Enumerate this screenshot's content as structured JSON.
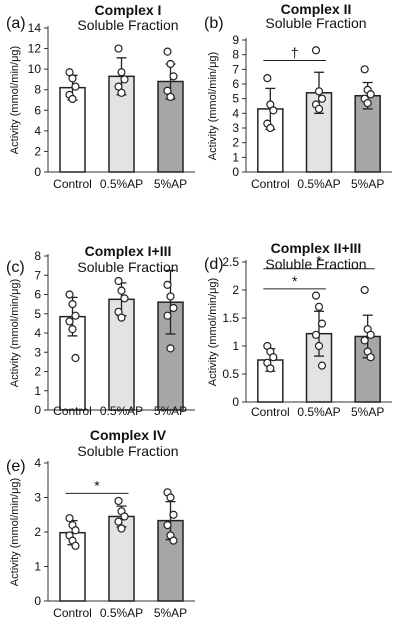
{
  "figure": {
    "categories": [
      "Control",
      "0.5%AP",
      "5%AP"
    ],
    "bar_colors": [
      "#ffffff",
      "#e3e3e3",
      "#a6a6a6"
    ],
    "ylabel": "Activity (mmol/min/μg)"
  },
  "chart_data": [
    {
      "type": "bar",
      "panel_label": "(a)",
      "title": "Complex I",
      "subtitle": "Soluble Fraction",
      "categories": [
        "Control",
        "0.5%AP",
        "5%AP"
      ],
      "values": [
        8.2,
        9.3,
        8.8
      ],
      "error": [
        1.2,
        1.8,
        1.7
      ],
      "points": [
        [
          9.7,
          9.1,
          8.3,
          7.5,
          7.1
        ],
        [
          12.0,
          9.7,
          9.0,
          8.3,
          7.7
        ],
        [
          11.7,
          10.5,
          9.3,
          7.9,
          7.3
        ]
      ],
      "ylabel": "Activity (mmol/min/μg)",
      "ylim": [
        0,
        14
      ],
      "yticks": [
        0,
        2,
        4,
        6,
        8,
        10,
        12,
        14
      ],
      "significance": []
    },
    {
      "type": "bar",
      "panel_label": "(b)",
      "title": "Complex II",
      "subtitle": "Soluble Fraction",
      "categories": [
        "Control",
        "0.5%AP",
        "5%AP"
      ],
      "values": [
        4.3,
        5.4,
        5.2
      ],
      "error": [
        1.4,
        1.4,
        0.9
      ],
      "points": [
        [
          6.4,
          4.6,
          4.2,
          3.3,
          3.0
        ],
        [
          8.3,
          5.5,
          5.0,
          4.6,
          4.3
        ],
        [
          7.0,
          5.6,
          5.3,
          5.0,
          4.7
        ]
      ],
      "ylabel": "Activity (mmol/min/μg)",
      "ylim": [
        0,
        9
      ],
      "yticks": [
        0,
        1,
        2,
        3,
        4,
        5,
        6,
        7,
        8,
        9
      ],
      "significance": [
        {
          "from": "Control",
          "to": "0.5%AP",
          "symbol": "†",
          "level": 7.6
        }
      ]
    },
    {
      "type": "bar",
      "panel_label": "(c)",
      "title": "Complex I+III",
      "subtitle": "Soluble Fraction",
      "categories": [
        "Control",
        "0.5%AP",
        "5%AP"
      ],
      "values": [
        4.85,
        5.75,
        5.6
      ],
      "error": [
        1.0,
        0.85,
        1.65
      ],
      "points": [
        [
          6.0,
          5.5,
          4.9,
          4.6,
          4.2,
          2.7
        ],
        [
          6.7,
          6.2,
          5.8,
          5.1,
          4.8
        ],
        [
          6.5,
          5.9,
          5.3,
          4.9,
          3.2
        ]
      ],
      "ylabel": "Activity (mmol/min/μg)",
      "ylim": [
        0,
        8
      ],
      "yticks": [
        0,
        1,
        2,
        3,
        4,
        5,
        6,
        7,
        8
      ],
      "significance": []
    },
    {
      "type": "bar",
      "panel_label": "(d)",
      "title": "Complex II+III",
      "subtitle": "Soluble Fraction",
      "categories": [
        "Control",
        "0.5%AP",
        "5%AP"
      ],
      "values": [
        0.75,
        1.22,
        1.17
      ],
      "error": [
        0.2,
        0.4,
        0.38
      ],
      "points": [
        [
          1.0,
          0.9,
          0.8,
          0.7,
          0.6
        ],
        [
          1.9,
          1.7,
          1.4,
          1.2,
          1.0,
          0.65
        ],
        [
          2.0,
          1.3,
          1.2,
          1.1,
          0.9,
          0.8
        ]
      ],
      "ylabel": "Activity (mmol/min/μg)",
      "ylim": [
        0,
        2.5
      ],
      "yticks": [
        0,
        0.5,
        1,
        1.5,
        2,
        2.5
      ],
      "significance": [
        {
          "from": "Control",
          "to": "5%AP",
          "symbol": "*",
          "level": 2.38
        },
        {
          "from": "Control",
          "to": "0.5%AP",
          "symbol": "*",
          "level": 2.02
        }
      ]
    },
    {
      "type": "bar",
      "panel_label": "(e)",
      "title": "Complex IV",
      "subtitle": "Soluble Fraction",
      "categories": [
        "Control",
        "0.5%AP",
        "5%AP"
      ],
      "values": [
        1.98,
        2.45,
        2.33
      ],
      "error": [
        0.35,
        0.3,
        0.55
      ],
      "points": [
        [
          2.4,
          2.2,
          2.05,
          1.9,
          1.75,
          1.6
        ],
        [
          2.9,
          2.6,
          2.45,
          2.3,
          2.1
        ],
        [
          3.15,
          3.0,
          2.5,
          2.2,
          1.9,
          1.75
        ]
      ],
      "ylabel": "Activity (mmol/min/μg)",
      "ylim": [
        0,
        4
      ],
      "yticks": [
        0,
        1,
        2,
        3,
        4
      ],
      "significance": [
        {
          "from": "Control",
          "to": "0.5%AP",
          "symbol": "*",
          "level": 3.12
        }
      ]
    }
  ]
}
